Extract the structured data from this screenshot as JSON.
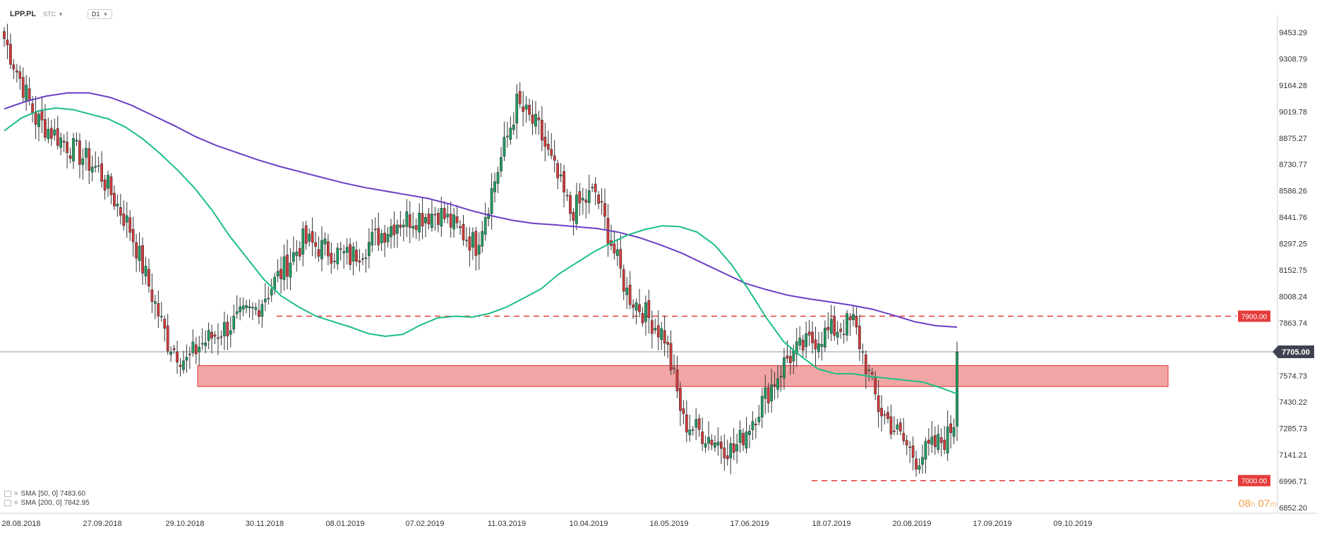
{
  "toolbar": {
    "symbol": "LPP.PL",
    "type": "STC",
    "interval": "D1"
  },
  "timer": {
    "hours": "08",
    "h": "h",
    "minutes": "07",
    "m": "m"
  },
  "legend": [
    {
      "name": "SMA",
      "params": "[50, 0]",
      "value": "7483.60"
    },
    {
      "name": "SMA",
      "params": "[200, 0]",
      "value": "7842.95"
    }
  ],
  "colors": {
    "up": "#1f9d61",
    "down": "#d23a3a",
    "sma50": "#1bbf86",
    "sma200": "#6b3fc4",
    "zone": "#f08f8f",
    "level": "#e53b3b"
  },
  "chart_data": {
    "type": "candlestick",
    "instrument": "LPP.PL",
    "timeframe": "D1",
    "ylim": [
      6852.2,
      9598.0
    ],
    "y_ticks": [
      "9453.29",
      "9308.79",
      "9164.28",
      "9019.78",
      "8875.27",
      "8730.77",
      "8586.26",
      "8441.76",
      "8297.25",
      "8152.75",
      "8008.24",
      "7863.74",
      "7574.73",
      "7430.22",
      "7285.73",
      "7141.21",
      "6996.71",
      "6852.20"
    ],
    "x_ticks": [
      "28.08.2018",
      "27.09.2018",
      "29.10.2018",
      "30.11.2018",
      "08.01.2019",
      "07.02.2019",
      "11.03.2019",
      "10.04.2019",
      "16.05.2019",
      "17.06.2019",
      "18.07.2019",
      "20.08.2019",
      "17.09.2019",
      "09.10.2019"
    ],
    "current_price": "7705.00",
    "horizontal_levels": [
      {
        "label": "7900.00",
        "value": 7900.0
      },
      {
        "label": "7000.00",
        "value": 7000.0
      }
    ],
    "zone": {
      "from": 7515.0,
      "to": 7630.0
    },
    "sma50": [
      8915,
      8985,
      9025,
      9040,
      9030,
      9005,
      8980,
      8935,
      8870,
      8790,
      8700,
      8600,
      8480,
      8340,
      8220,
      8100,
      8010,
      7950,
      7900,
      7870,
      7840,
      7805,
      7790,
      7800,
      7850,
      7890,
      7900,
      7895,
      7915,
      7950,
      8000,
      8050,
      8130,
      8190,
      8250,
      8300,
      8345,
      8375,
      8395,
      8390,
      8360,
      8290,
      8180,
      8040,
      7890,
      7760,
      7680,
      7610,
      7585,
      7585,
      7570,
      7560,
      7550,
      7540,
      7510,
      7475
    ],
    "sma200": [
      9035,
      9075,
      9105,
      9122,
      9122,
      9098,
      9055,
      9000,
      8945,
      8885,
      8835,
      8795,
      8755,
      8720,
      8690,
      8660,
      8630,
      8605,
      8585,
      8565,
      8545,
      8515,
      8480,
      8450,
      8425,
      8408,
      8400,
      8390,
      8380,
      8360,
      8330,
      8290,
      8245,
      8190,
      8135,
      8080,
      8045,
      8015,
      7995,
      7978,
      7960,
      7938,
      7905,
      7870,
      7848,
      7840
    ]
  }
}
